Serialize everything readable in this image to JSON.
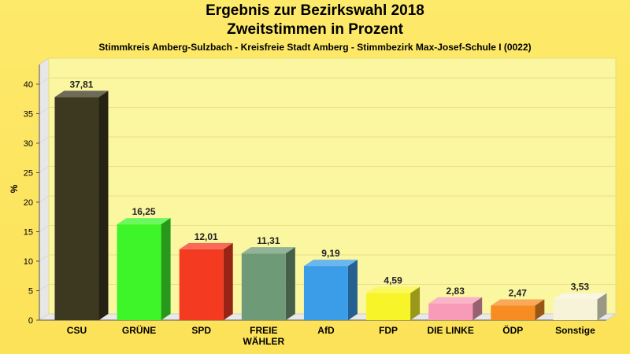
{
  "chart_data": {
    "type": "bar",
    "title": "Ergebnis zur Bezirkswahl 2018",
    "title2": "Zweitstimmen in Prozent",
    "subtitle": "Stimmkreis Amberg-Sulzbach - Kreisfreie Stadt Amberg - Stimmbezirk Max-Josef-Schule I (0022)",
    "ylabel": "%",
    "xlabel": "",
    "ylim": [
      0,
      40
    ],
    "yticks": [
      0,
      5,
      10,
      15,
      20,
      25,
      30,
      35,
      40
    ],
    "categories": [
      "CSU",
      "GRÜNE",
      "SPD",
      "FREIE WÄHLER",
      "AfD",
      "FDP",
      "DIE LINKE",
      "ÖDP",
      "Sonstige"
    ],
    "category_lines": [
      [
        "CSU"
      ],
      [
        "GRÜNE"
      ],
      [
        "SPD"
      ],
      [
        "FREIE",
        "WÄHLER"
      ],
      [
        "AfD"
      ],
      [
        "FDP"
      ],
      [
        "DIE LINKE"
      ],
      [
        "ÖDP"
      ],
      [
        "Sonstige"
      ]
    ],
    "values": [
      37.81,
      16.25,
      12.01,
      11.31,
      9.19,
      4.59,
      2.83,
      2.47,
      3.53
    ],
    "value_labels": [
      "37,81",
      "16,25",
      "12,01",
      "11,31",
      "9,19",
      "4,59",
      "2,83",
      "2,47",
      "3,53"
    ],
    "colors": [
      "#3d3820",
      "#3ef52a",
      "#f53a22",
      "#6e9a78",
      "#3b9de8",
      "#f7f52a",
      "#f79bb8",
      "#f78c22",
      "#f7f3d8"
    ],
    "grid": true,
    "legend": "none"
  }
}
